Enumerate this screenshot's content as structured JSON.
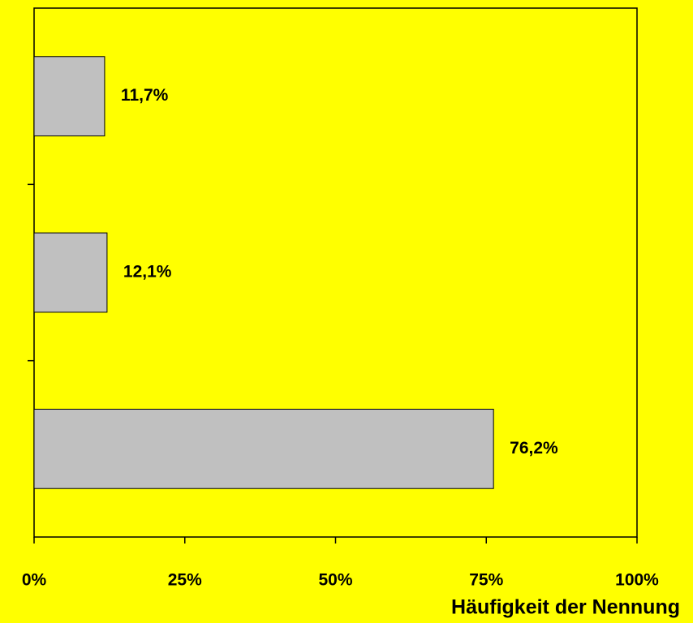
{
  "chart_data": {
    "type": "bar",
    "orientation": "horizontal",
    "categories": [
      null,
      null,
      null
    ],
    "values": [
      11.7,
      12.1,
      76.2
    ],
    "value_labels": [
      "11,7%",
      "12,1%",
      "76,2%"
    ],
    "color": "#c0c0c0",
    "xlabel": "Häufigkeit der Nennung",
    "xlim": [
      0,
      100
    ],
    "xticks": [
      {
        "value": 0,
        "label": "0%"
      },
      {
        "value": 25,
        "label": "25%"
      },
      {
        "value": 50,
        "label": "50%"
      },
      {
        "value": 75,
        "label": "75%"
      },
      {
        "value": 100,
        "label": "100%"
      }
    ],
    "grid": false
  }
}
